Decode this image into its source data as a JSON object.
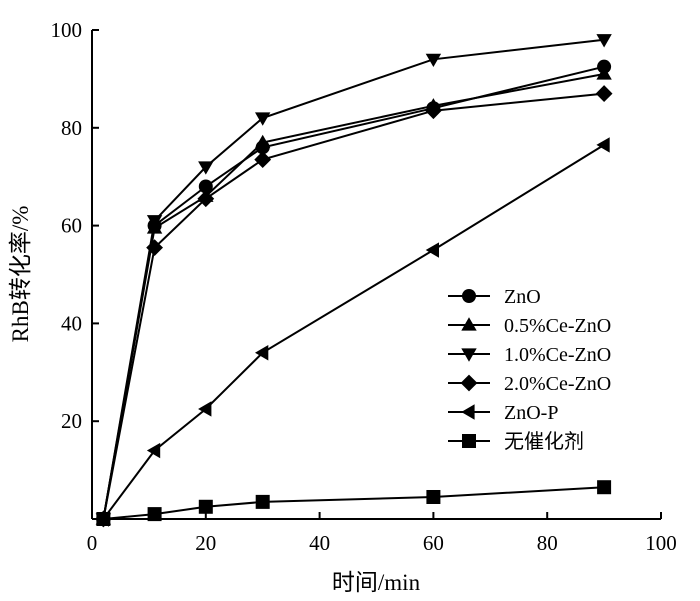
{
  "chart_data": {
    "type": "line",
    "title": "",
    "xlabel": "时间/min",
    "ylabel": "RhB转化率/%",
    "xlim": [
      0,
      100
    ],
    "ylim": [
      0,
      100
    ],
    "x_ticks": [
      0,
      20,
      40,
      60,
      80,
      100
    ],
    "y_ticks": [
      20,
      40,
      60,
      80,
      100
    ],
    "x_tick_labels": [
      "0",
      "20",
      "40",
      "60",
      "80",
      "100"
    ],
    "y_tick_labels": [
      "20",
      "40",
      "60",
      "80",
      "100"
    ],
    "legend_position": "right-center",
    "grid": false,
    "series": [
      {
        "name": "ZnO",
        "marker": "circle",
        "x": [
          2,
          11,
          20,
          30,
          60,
          90
        ],
        "y": [
          0,
          60,
          68,
          76,
          84,
          92.5
        ]
      },
      {
        "name": "0.5%Ce-ZnO",
        "marker": "triangle-up",
        "x": [
          2,
          11,
          20,
          30,
          60,
          90
        ],
        "y": [
          0,
          59.5,
          66,
          77,
          84.5,
          91
        ]
      },
      {
        "name": "1.0%Ce-ZnO",
        "marker": "triangle-down",
        "x": [
          2,
          11,
          20,
          30,
          60,
          90
        ],
        "y": [
          0,
          61,
          72,
          82,
          94,
          98
        ]
      },
      {
        "name": "2.0%Ce-ZnO",
        "marker": "diamond",
        "x": [
          2,
          11,
          20,
          30,
          60,
          90
        ],
        "y": [
          0,
          55.5,
          65.5,
          73.5,
          83.5,
          87
        ]
      },
      {
        "name": "ZnO-P",
        "marker": "triangle-left",
        "x": [
          2,
          11,
          20,
          30,
          60,
          90
        ],
        "y": [
          0,
          14,
          22.5,
          34,
          55,
          76.5
        ]
      },
      {
        "name": "无催化剂",
        "marker": "square",
        "x": [
          2,
          11,
          20,
          30,
          60,
          90
        ],
        "y": [
          0,
          1,
          2.5,
          3.5,
          4.5,
          6.5
        ]
      }
    ]
  }
}
